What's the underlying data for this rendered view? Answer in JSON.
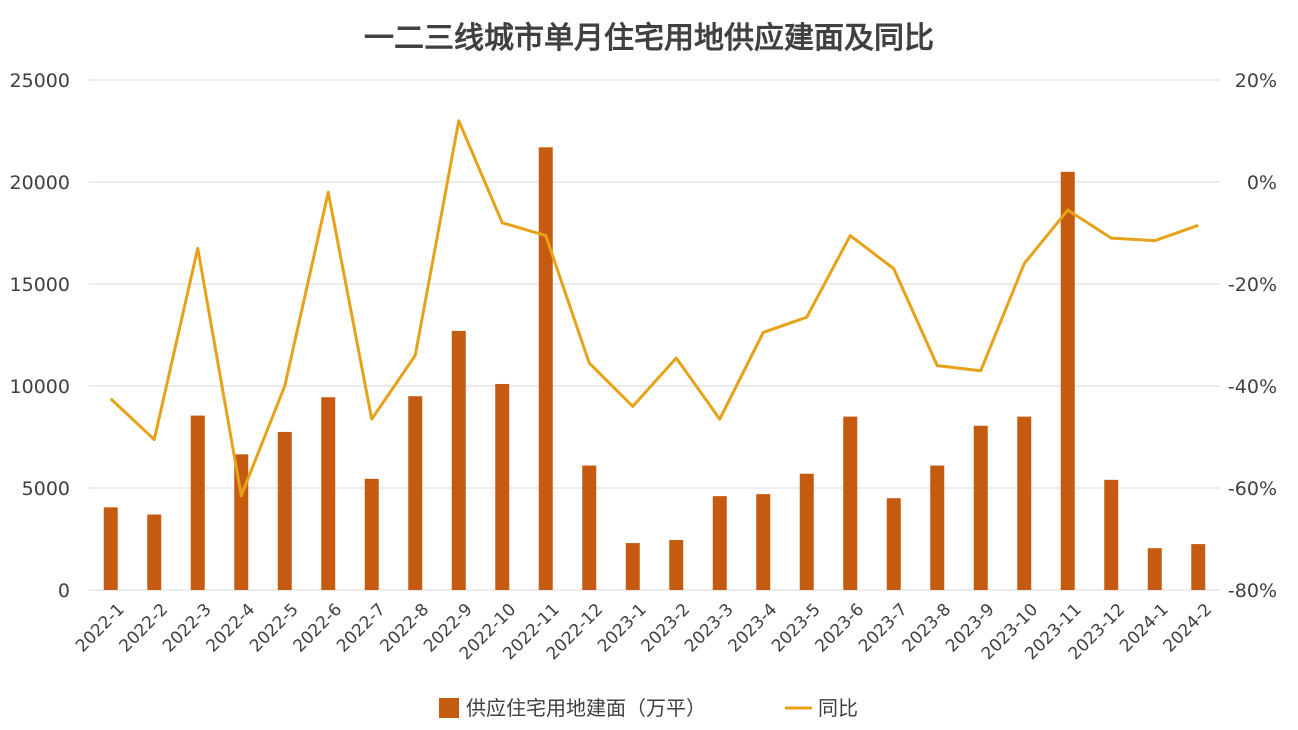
{
  "chart_data": {
    "type": "bar",
    "title": "一二三线城市单月住宅用地供应建面及同比",
    "categories": [
      "2022-1",
      "2022-2",
      "2022-3",
      "2022-4",
      "2022-5",
      "2022-6",
      "2022-7",
      "2022-8",
      "2022-9",
      "2022-10",
      "2022-11",
      "2022-12",
      "2023-1",
      "2023-2",
      "2023-3",
      "2023-4",
      "2023-5",
      "2023-6",
      "2023-7",
      "2023-8",
      "2023-9",
      "2023-10",
      "2023-11",
      "2023-12",
      "2024-1",
      "2024-2"
    ],
    "series": [
      {
        "name": "供应住宅用地建面（万平）",
        "type": "bar",
        "axis": "left",
        "color": "#C55A11",
        "values": [
          4050,
          3700,
          8550,
          6650,
          7750,
          9450,
          5450,
          9500,
          12700,
          10100,
          21700,
          6100,
          2300,
          2450,
          4600,
          4700,
          5700,
          8500,
          4500,
          6100,
          8050,
          8500,
          20500,
          5400,
          2050,
          2250
        ]
      },
      {
        "name": "同比",
        "type": "line",
        "axis": "right",
        "color": "#E6A219",
        "values": [
          -42.5,
          -50.5,
          -13,
          -61.5,
          -40,
          -2,
          -46.5,
          -34,
          12,
          -8,
          -10.5,
          -35.5,
          -44,
          -34.5,
          -46.5,
          -29.5,
          -26.5,
          -10.5,
          -17,
          -36,
          -37,
          -16,
          -5.5,
          -11,
          -11.5,
          -8.5
        ]
      }
    ],
    "ylim": [
      0,
      25000
    ],
    "yticks": [
      "25000",
      "20000",
      "15000",
      "10000",
      "5000",
      "0"
    ],
    "y2lim": [
      -80,
      20
    ],
    "y2ticks": [
      "20%",
      "0%",
      "-20%",
      "-40%",
      "-60%",
      "-80%"
    ],
    "grid": true,
    "legend_position": "bottom"
  }
}
